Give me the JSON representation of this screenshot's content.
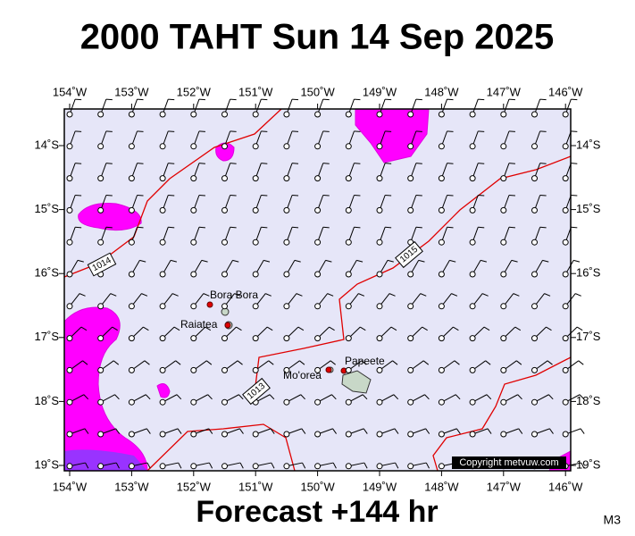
{
  "header": {
    "title": "2000 TAHT Sun 14 Sep 2025"
  },
  "map": {
    "longitude_labels": [
      "154˚W",
      "153˚W",
      "152˚W",
      "151˚W",
      "150˚W",
      "149˚W",
      "148˚W",
      "147˚W",
      "146˚W"
    ],
    "latitude_labels": [
      "14˚S",
      "15˚S",
      "16˚S",
      "17˚S",
      "18˚S",
      "19˚S"
    ],
    "places": [
      "Bora Bora",
      "Raiatea",
      "Mo'orea",
      "Papeete"
    ],
    "isobar_labels": [
      "1014",
      "1015",
      "1013"
    ],
    "credit": "Copyright metvuw.com"
  },
  "footer": {
    "forecast": "Forecast +144 hr",
    "code": "M3"
  }
}
